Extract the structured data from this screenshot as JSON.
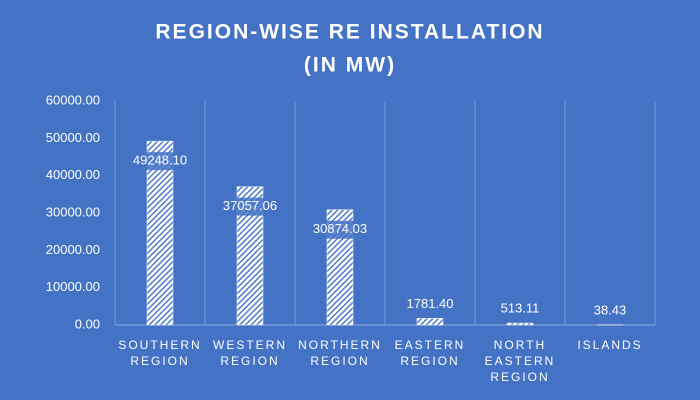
{
  "chart_data": {
    "type": "bar",
    "title": [
      "REGION-WISE RE INSTALLATION",
      "(IN MW)"
    ],
    "categories": [
      "SOUTHERN REGION",
      "WESTERN REGION",
      "NORTHERN REGION",
      "EASTERN REGION",
      "NORTH EASTERN REGION",
      "ISLANDS"
    ],
    "values": [
      49248.1,
      37057.06,
      30874.03,
      1781.4,
      513.11,
      38.43
    ],
    "value_labels": [
      "49248.10",
      "37057.06",
      "30874.03",
      "1781.40",
      "513.11",
      "38.43"
    ],
    "color": "#ffffff",
    "ylim": [
      0,
      60000
    ],
    "yticks": [
      {
        "value": 0,
        "label": "0.00"
      },
      {
        "value": 10000,
        "label": "10000.00"
      },
      {
        "value": 20000,
        "label": "20000.00"
      },
      {
        "value": 30000,
        "label": "30000.00"
      },
      {
        "value": 40000,
        "label": "40000.00"
      },
      {
        "value": 50000,
        "label": "50000.00"
      },
      {
        "value": 60000,
        "label": "60000.00"
      }
    ]
  }
}
